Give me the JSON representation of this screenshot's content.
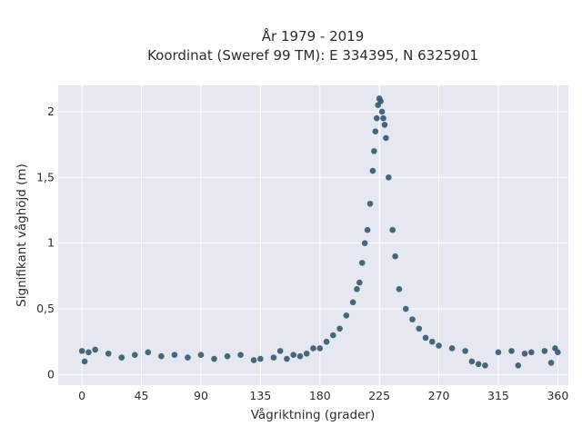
{
  "chart_data": {
    "type": "scatter",
    "title_line1": "År 1979 - 2019",
    "title_line2": "Koordinat (Sweref 99 TM): E 334395, N 6325901",
    "xlabel": "Vågriktning (grader)",
    "ylabel": "Signifikant våghöjd (m)",
    "xlim": [
      -18,
      368
    ],
    "ylim": [
      -0.08,
      2.2
    ],
    "x_ticks": [
      0,
      45,
      90,
      135,
      180,
      225,
      270,
      315,
      360
    ],
    "y_ticks": [
      0,
      0.5,
      1,
      1.5,
      2
    ],
    "y_tick_labels": [
      "0",
      "0,5",
      "1",
      "1,5",
      "2"
    ],
    "grid": true,
    "background": "#e5e8f0",
    "marker_color": "#34586e",
    "series": [
      {
        "points": [
          [
            0,
            0.18
          ],
          [
            2,
            0.1
          ],
          [
            5,
            0.17
          ],
          [
            10,
            0.19
          ],
          [
            20,
            0.16
          ],
          [
            30,
            0.13
          ],
          [
            40,
            0.15
          ],
          [
            50,
            0.17
          ],
          [
            60,
            0.14
          ],
          [
            70,
            0.15
          ],
          [
            80,
            0.13
          ],
          [
            90,
            0.15
          ],
          [
            100,
            0.12
          ],
          [
            110,
            0.14
          ],
          [
            120,
            0.15
          ],
          [
            130,
            0.11
          ],
          [
            135,
            0.12
          ],
          [
            145,
            0.13
          ],
          [
            150,
            0.18
          ],
          [
            155,
            0.12
          ],
          [
            160,
            0.15
          ],
          [
            165,
            0.14
          ],
          [
            170,
            0.16
          ],
          [
            175,
            0.2
          ],
          [
            180,
            0.2
          ],
          [
            185,
            0.25
          ],
          [
            190,
            0.3
          ],
          [
            195,
            0.35
          ],
          [
            200,
            0.45
          ],
          [
            205,
            0.55
          ],
          [
            208,
            0.65
          ],
          [
            210,
            0.7
          ],
          [
            212,
            0.85
          ],
          [
            214,
            1.0
          ],
          [
            216,
            1.1
          ],
          [
            218,
            1.3
          ],
          [
            220,
            1.55
          ],
          [
            221,
            1.7
          ],
          [
            222,
            1.85
          ],
          [
            223,
            1.95
          ],
          [
            224,
            2.05
          ],
          [
            225,
            2.1
          ],
          [
            226,
            2.08
          ],
          [
            227,
            2.0
          ],
          [
            228,
            1.95
          ],
          [
            229,
            1.9
          ],
          [
            230,
            1.8
          ],
          [
            232,
            1.5
          ],
          [
            235,
            1.1
          ],
          [
            237,
            0.9
          ],
          [
            240,
            0.65
          ],
          [
            245,
            0.5
          ],
          [
            250,
            0.42
          ],
          [
            255,
            0.35
          ],
          [
            260,
            0.28
          ],
          [
            265,
            0.25
          ],
          [
            270,
            0.22
          ],
          [
            280,
            0.2
          ],
          [
            290,
            0.18
          ],
          [
            295,
            0.1
          ],
          [
            300,
            0.08
          ],
          [
            305,
            0.07
          ],
          [
            315,
            0.17
          ],
          [
            325,
            0.18
          ],
          [
            330,
            0.07
          ],
          [
            335,
            0.16
          ],
          [
            340,
            0.17
          ],
          [
            350,
            0.18
          ],
          [
            355,
            0.09
          ],
          [
            358,
            0.2
          ],
          [
            360,
            0.17
          ]
        ]
      }
    ]
  }
}
